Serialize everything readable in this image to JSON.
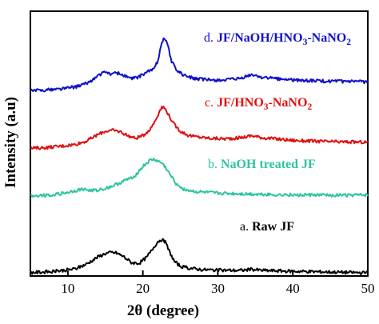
{
  "chart_data": {
    "type": "line",
    "xlabel": "2θ (degree)",
    "ylabel": "Intensity (a.u)",
    "xlim": [
      5,
      50
    ],
    "x_ticks": [
      10,
      20,
      30,
      40,
      50
    ],
    "y_ticks_visible": false,
    "grid": false,
    "series": [
      {
        "id": "a",
        "name": "Raw JF",
        "prefix": "a.",
        "color": "#000000",
        "label_color": "#000000",
        "points": [
          [
            5,
            0.013
          ],
          [
            7,
            0.015
          ],
          [
            9,
            0.02
          ],
          [
            11,
            0.027
          ],
          [
            12.5,
            0.045
          ],
          [
            14,
            0.072
          ],
          [
            15,
            0.085
          ],
          [
            15.8,
            0.089
          ],
          [
            16.5,
            0.087
          ],
          [
            17.5,
            0.072
          ],
          [
            18.5,
            0.05
          ],
          [
            19.5,
            0.048
          ],
          [
            20.5,
            0.07
          ],
          [
            21.3,
            0.102
          ],
          [
            22,
            0.13
          ],
          [
            22.5,
            0.138
          ],
          [
            23,
            0.127
          ],
          [
            23.5,
            0.095
          ],
          [
            24.2,
            0.055
          ],
          [
            25,
            0.037
          ],
          [
            26,
            0.03
          ],
          [
            28,
            0.024
          ],
          [
            30,
            0.022
          ],
          [
            33,
            0.021
          ],
          [
            34.5,
            0.025
          ],
          [
            36,
            0.021
          ],
          [
            40,
            0.018
          ],
          [
            45,
            0.015
          ],
          [
            50,
            0.012
          ]
        ]
      },
      {
        "id": "b",
        "name": "NaOH treated JF",
        "prefix": "b.",
        "color": "#2ec4a0",
        "label_color": "#2ec4a0",
        "points": [
          [
            5,
            0.303
          ],
          [
            7,
            0.305
          ],
          [
            9,
            0.31
          ],
          [
            11,
            0.322
          ],
          [
            12,
            0.328
          ],
          [
            13,
            0.322
          ],
          [
            14,
            0.325
          ],
          [
            15,
            0.33
          ],
          [
            16,
            0.34
          ],
          [
            17,
            0.352
          ],
          [
            18,
            0.365
          ],
          [
            19,
            0.38
          ],
          [
            20,
            0.413
          ],
          [
            21,
            0.437
          ],
          [
            21.5,
            0.44
          ],
          [
            22,
            0.433
          ],
          [
            22.6,
            0.425
          ],
          [
            23,
            0.41
          ],
          [
            23.8,
            0.375
          ],
          [
            24.5,
            0.347
          ],
          [
            25.5,
            0.327
          ],
          [
            27,
            0.318
          ],
          [
            30,
            0.312
          ],
          [
            33,
            0.31
          ],
          [
            35,
            0.309
          ],
          [
            40,
            0.306
          ],
          [
            45,
            0.305
          ],
          [
            50,
            0.305
          ]
        ]
      },
      {
        "id": "c",
        "name": "JF/HNO3-NaNO2",
        "name_base": "JF/HNO",
        "name_sub1": "3",
        "name_mid": "-NaNO",
        "name_sub2": "2",
        "prefix": "c.",
        "color": "#e01010",
        "label_color": "#e01010",
        "points": [
          [
            5,
            0.482
          ],
          [
            7,
            0.485
          ],
          [
            9,
            0.49
          ],
          [
            11,
            0.497
          ],
          [
            12.5,
            0.51
          ],
          [
            14,
            0.534
          ],
          [
            15,
            0.547
          ],
          [
            16,
            0.55
          ],
          [
            17,
            0.545
          ],
          [
            18,
            0.53
          ],
          [
            19,
            0.52
          ],
          [
            20,
            0.53
          ],
          [
            21,
            0.555
          ],
          [
            21.7,
            0.59
          ],
          [
            22.4,
            0.633
          ],
          [
            22.8,
            0.638
          ],
          [
            23.3,
            0.617
          ],
          [
            24,
            0.578
          ],
          [
            25,
            0.547
          ],
          [
            26,
            0.532
          ],
          [
            27,
            0.526
          ],
          [
            29,
            0.52
          ],
          [
            31,
            0.518
          ],
          [
            33,
            0.522
          ],
          [
            34.5,
            0.53
          ],
          [
            36,
            0.522
          ],
          [
            40,
            0.512
          ],
          [
            45,
            0.507
          ],
          [
            50,
            0.505
          ]
        ]
      },
      {
        "id": "d",
        "name": "JF/NaOH/HNO3-NaNO2",
        "name_base": "JF/NaOH/HNO",
        "name_sub1": "3",
        "name_mid": "-NaNO",
        "name_sub2": "2",
        "prefix": "d.",
        "color": "#1010c8",
        "label_color": "#1010c8",
        "points": [
          [
            5,
            0.7
          ],
          [
            7,
            0.703
          ],
          [
            9,
            0.707
          ],
          [
            11,
            0.714
          ],
          [
            12.5,
            0.727
          ],
          [
            13.5,
            0.745
          ],
          [
            14.5,
            0.765
          ],
          [
            15.2,
            0.77
          ],
          [
            15.8,
            0.762
          ],
          [
            16.5,
            0.768
          ],
          [
            17.5,
            0.757
          ],
          [
            18.5,
            0.745
          ],
          [
            19.5,
            0.752
          ],
          [
            20.5,
            0.77
          ],
          [
            21.5,
            0.782
          ],
          [
            22,
            0.813
          ],
          [
            22.5,
            0.88
          ],
          [
            22.8,
            0.9
          ],
          [
            23.3,
            0.875
          ],
          [
            23.8,
            0.813
          ],
          [
            24.5,
            0.778
          ],
          [
            25.5,
            0.757
          ],
          [
            27,
            0.745
          ],
          [
            29,
            0.74
          ],
          [
            31,
            0.74
          ],
          [
            33,
            0.745
          ],
          [
            34.5,
            0.76
          ],
          [
            36,
            0.75
          ],
          [
            40,
            0.74
          ],
          [
            45,
            0.735
          ],
          [
            50,
            0.733
          ]
        ]
      }
    ]
  }
}
